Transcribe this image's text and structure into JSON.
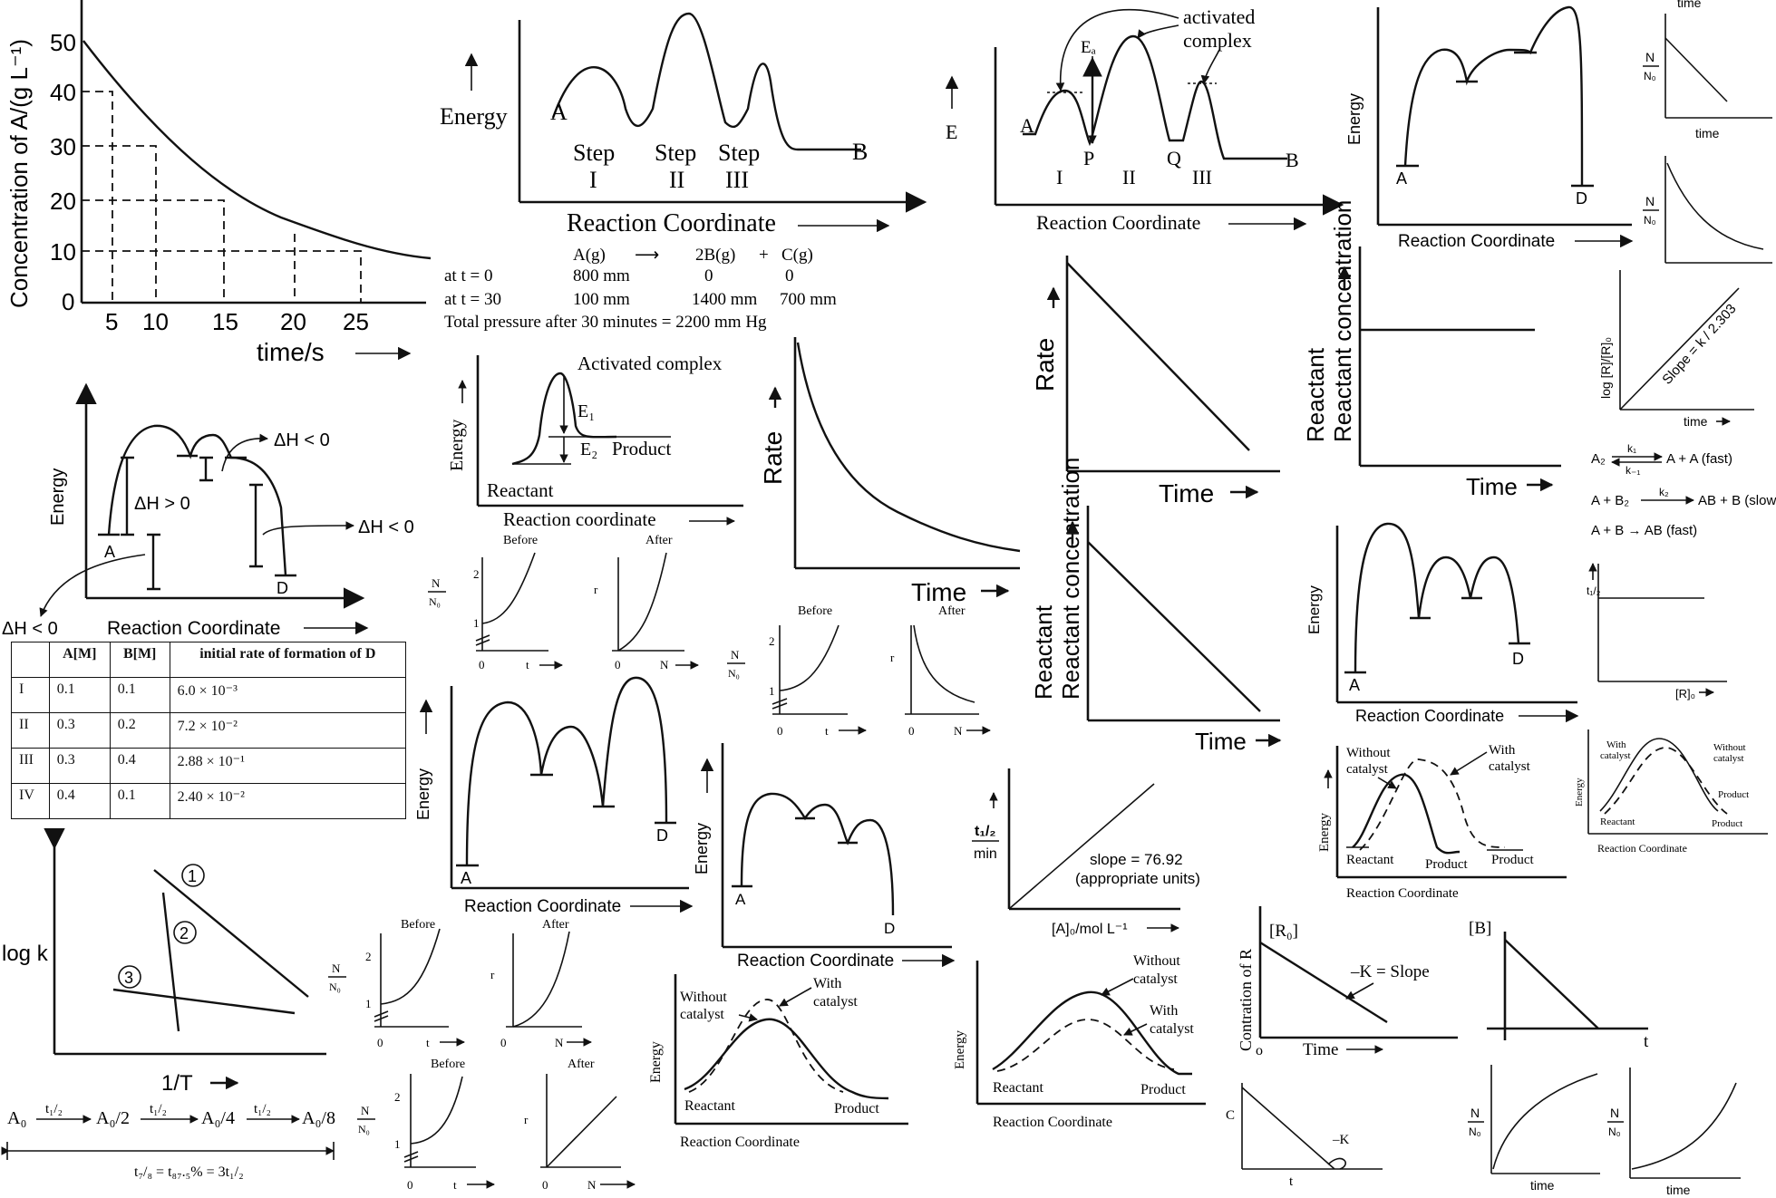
{
  "panels": {
    "conc_decay": {
      "ylabel": "Concentration of A/(g L⁻¹)",
      "xlabel": "time/s",
      "yticks": [
        "50",
        "40",
        "30",
        "20",
        "10",
        "0"
      ],
      "xticks": [
        "5",
        "10",
        "15",
        "20",
        "25"
      ]
    },
    "three_step": {
      "ylabel": "Energy",
      "xlabel": "Reaction Coordinate",
      "start": "A",
      "end": "B",
      "steps": [
        {
          "word": "Step",
          "num": "I"
        },
        {
          "word": "Step",
          "num": "II"
        },
        {
          "word": "Step",
          "num": "III"
        }
      ]
    },
    "pressure_data": {
      "reaction": [
        "A(g)",
        "⟶",
        "2B(g)",
        "+",
        "C(g)"
      ],
      "rows": [
        {
          "label": "at t = 0",
          "a": "800 mm",
          "b": "0",
          "c": "0"
        },
        {
          "label": "at t = 30",
          "a": "100 mm",
          "b": "1400 mm",
          "c": "700 mm"
        }
      ],
      "total": "Total pressure after 30 minutes = 2200 mm Hg"
    },
    "activated_pq": {
      "ylabel": "E",
      "xlabel": "Reaction Coordinate",
      "annot": [
        "activated",
        "complex"
      ],
      "ea": "Eₐ",
      "points": [
        "A",
        "P",
        "Q",
        "B"
      ],
      "steps": [
        "I",
        "II",
        "III"
      ]
    },
    "energy_ad_top": {
      "ylabel": "Energy",
      "xlabel": "Reaction Coordinate",
      "start": "A",
      "end": "D"
    },
    "n_linear": {
      "ylabel_top": "N",
      "ylabel_bot": "N₀",
      "xlabel": "time",
      "toplabel": "time"
    },
    "n_decay": {
      "ylabel_top": "N",
      "ylabel_bot": "N₀"
    },
    "deltaH": {
      "ylabel": "Energy",
      "xlabel": "Reaction Coordinate",
      "start": "A",
      "end": "D",
      "labels": [
        "ΔH < 0",
        "ΔH > 0",
        "ΔH < 0",
        "ΔH < 0"
      ]
    },
    "activated_e1e2": {
      "ylabel": "Energy",
      "xlabel": "Reaction coordinate",
      "annot": "Activated complex",
      "e1": "E₁",
      "e2": "E₂",
      "product": "Product",
      "reactant": "Reactant"
    },
    "rate_decay": {
      "ylabel": "Rate",
      "xlabel": "Time"
    },
    "rate_linear": {
      "ylabel": "Rate",
      "xlabel": "Time"
    },
    "conc_const": {
      "ylabel": "Reactant concentration",
      "xlabel": "Time"
    },
    "conc_linear": {
      "ylabel": "Reactant concentration",
      "xlabel": "Time"
    },
    "log_r": {
      "ylabel": "log [R]/[R]₀",
      "slope": "Slope = k / 2.303",
      "xlabel": "time"
    },
    "mechanism": {
      "step1": {
        "lhs": "A₂",
        "k_top": "k₁",
        "k_bot": "k₋₁",
        "rhs": "A + A (fast)"
      },
      "step2": {
        "lhs": "A + B₂",
        "k": "k₂",
        "rhs": "AB + B (slow)"
      },
      "step3": {
        "text": "A + B → AB (fast)"
      }
    },
    "half_life": {
      "ylabel": "t₁/₂",
      "xlabel": "[R]₀"
    },
    "rate_table": {
      "headers": [
        "",
        "A[M]",
        "B[M]",
        "initial rate of formation of D"
      ],
      "rows": [
        {
          "exp": "I",
          "a": "0.1",
          "b": "0.1",
          "rate": "6.0 × 10⁻³"
        },
        {
          "exp": "II",
          "a": "0.3",
          "b": "0.2",
          "rate": "7.2 × 10⁻²"
        },
        {
          "exp": "III",
          "a": "0.3",
          "b": "0.4",
          "rate": "2.88 × 10⁻¹"
        },
        {
          "exp": "IV",
          "a": "0.4",
          "b": "0.1",
          "rate": "2.40 × 10⁻²"
        }
      ]
    },
    "before_after_1": {
      "before": "Before",
      "after": "After",
      "n_top": "N",
      "n_bot": "N₀",
      "t": "t",
      "r": "r",
      "n": "N",
      "ticks": [
        "2",
        "1",
        "0"
      ]
    },
    "before_after_2": {
      "before": "Before",
      "after": "After",
      "n_top": "N",
      "n_bot": "N₀",
      "t": "t",
      "r": "r",
      "n": "N",
      "ticks": [
        "2",
        "1",
        "0"
      ]
    },
    "before_after_3": {
      "before": "Before",
      "after": "After",
      "n_top": "N",
      "n_bot": "N₀",
      "t": "t",
      "r": "r",
      "n": "N",
      "ticks": [
        "2",
        "1",
        "0"
      ]
    },
    "before_after_4": {
      "before": "Before",
      "n_top": "N",
      "n_bot": "N₀",
      "t": "t",
      "r": "r",
      "n": "N",
      "ticks": [
        "2",
        "1",
        "0"
      ]
    },
    "energy_ad_mid": {
      "ylabel": "Energy",
      "xlabel": "Reaction Coordinate",
      "start": "A",
      "end": "D"
    },
    "energy_ad_low": {
      "ylabel": "Energy",
      "xlabel": "Reaction Coordinate",
      "start": "A",
      "end": "D"
    },
    "energy_ad_right": {
      "ylabel": "Energy",
      "xlabel": "Reaction Coordinate",
      "start": "A",
      "end": "D"
    },
    "half_life_linear": {
      "ylabel_top": "t₁/₂",
      "ylabel_bot": "min",
      "slope": "slope = 76.92",
      "units": "(appropriate units)",
      "xlabel": "[A]₀/mol L⁻¹"
    },
    "catalyst_1": {
      "without": [
        "Without",
        "catalyst"
      ],
      "with": [
        "With",
        "catalyst"
      ],
      "ylabel": "Energy",
      "reactant": "Reactant",
      "product": "Product",
      "xlabel": "Reaction Coordinate"
    },
    "catalyst_2": {
      "without": [
        "Without",
        "catalyst"
      ],
      "with": [
        "With",
        "catalyst"
      ],
      "ylabel": "Energy",
      "reactant": "Reactant",
      "product": "Product",
      "product2": "Product",
      "xlabel": "Reaction Coordinate"
    },
    "catalyst_3": {
      "without": [
        "Without",
        "catalyst"
      ],
      "with": [
        "With",
        "catalyst"
      ],
      "ylabel": "Energy",
      "reactant": "Reactant",
      "product": "Product",
      "xlabel": "Reaction Coordinate"
    },
    "catalyst_4": {
      "without": [
        "Without",
        "catalyst"
      ],
      "with": [
        "With",
        "catalyst"
      ],
      "ylabel": "Energy",
      "reactant": "Reactant",
      "product": "Product",
      "xlabel": "Reaction Coordinate"
    },
    "arrhenius": {
      "ylabel": "log k",
      "xlabel": "1/T",
      "lines": [
        "1",
        "2",
        "3"
      ]
    },
    "half_life_chain": {
      "chain": [
        "A₀",
        "A₀/2",
        "A₀/4",
        "A₀/8"
      ],
      "arrow": "t₁/₂",
      "result": "t₇/₈ = t₈₇.₅% = 3t₁/₂"
    },
    "zero_order_r": {
      "ylabel": "Contration of R",
      "r0": "[R₀]",
      "slope": "–K = Slope",
      "xlabel": "Time",
      "origin": "o"
    },
    "zero_order_b": {
      "b": "[B]",
      "t": "t"
    },
    "c_t": {
      "c": "C",
      "k": "–K",
      "t": "t"
    },
    "n_rise_1": {
      "n_top": "N",
      "n_bot": "N₀",
      "xlabel": "time"
    },
    "n_rise_2": {
      "n_top": "N",
      "n_bot": "N₀",
      "xlabel": "time"
    }
  }
}
